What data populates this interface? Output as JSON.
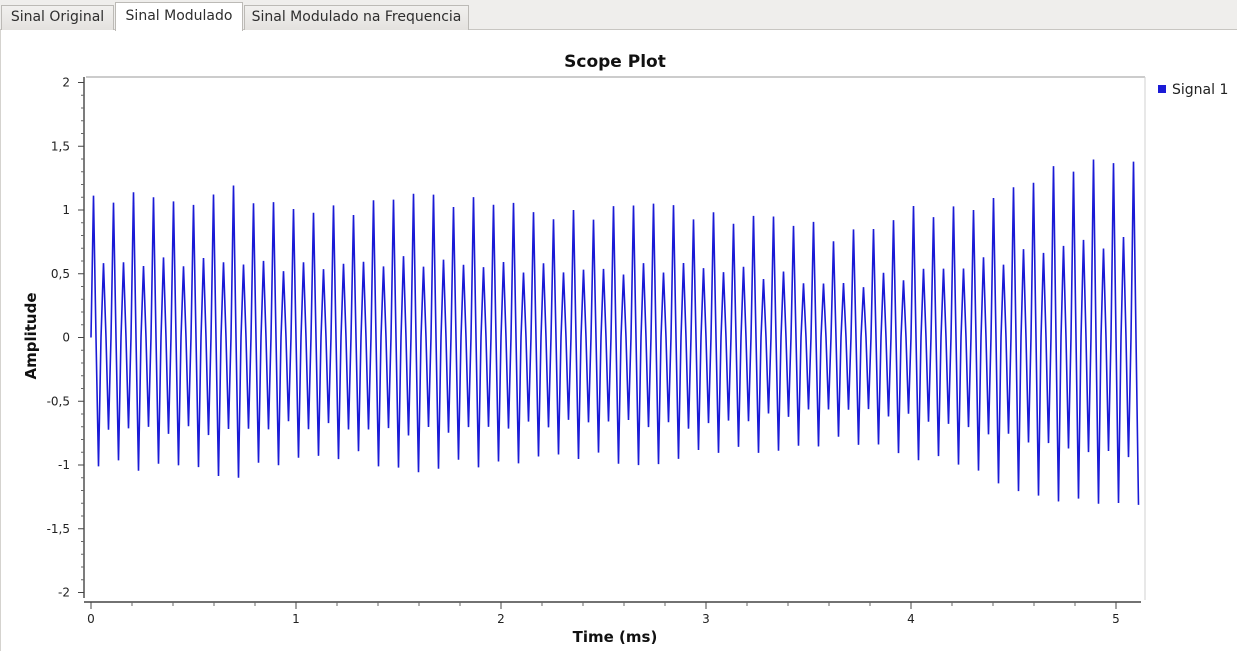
{
  "tabs": [
    {
      "label": "Sinal Original",
      "active": false
    },
    {
      "label": "Sinal Modulado",
      "active": true
    },
    {
      "label": "Sinal Modulado na Frequencia",
      "active": false
    }
  ],
  "chart_data": {
    "type": "line",
    "title": "Scope Plot",
    "xlabel": "Time (ms)",
    "ylabel": "Amplitude",
    "xlim": [
      0,
      5.12
    ],
    "ylim": [
      -2,
      2
    ],
    "x_ticks": [
      0,
      1,
      2,
      3,
      4,
      5
    ],
    "x_tick_labels": [
      "0",
      "1",
      "2",
      "3",
      "4",
      "5"
    ],
    "y_ticks": [
      2,
      1.5,
      1,
      0.5,
      0,
      -0.5,
      -1,
      -1.5,
      -2
    ],
    "y_tick_labels": [
      "2",
      "1,5",
      "1",
      "0,5",
      "0",
      "-0,5",
      "-1",
      "-1,5",
      "-2"
    ],
    "grid": false,
    "legend_position": "top-right",
    "color": "#1a1ad6",
    "series": [
      {
        "name": "Signal 1",
        "carrier_cycles_per_ms": 20.5,
        "envelope_peaks": {
          "t": [
            0,
            0.3,
            0.5,
            0.63,
            0.8,
            1.0,
            1.3,
            1.55,
            1.8,
            2.0,
            2.2,
            2.5,
            2.7,
            2.9,
            3.1,
            3.3,
            3.5,
            3.65,
            3.85,
            4.0,
            4.2,
            4.4,
            4.6,
            4.8,
            5.0,
            5.12
          ],
          "upper": [
            1.08,
            1.12,
            1.02,
            1.2,
            1.08,
            1.0,
            1.0,
            1.14,
            1.05,
            1.08,
            0.95,
            0.97,
            1.08,
            0.98,
            0.92,
            0.95,
            0.88,
            0.78,
            0.88,
            1.0,
            0.98,
            1.08,
            1.25,
            1.35,
            1.38,
            1.4
          ],
          "lower": [
            -0.98,
            -1.02,
            -0.98,
            -1.12,
            -1.02,
            -0.95,
            -0.92,
            -1.07,
            -0.98,
            -1.0,
            -0.93,
            -0.93,
            -1.03,
            -0.92,
            -0.87,
            -0.9,
            -0.85,
            -0.8,
            -0.85,
            -0.95,
            -0.95,
            -1.12,
            -1.25,
            -1.28,
            -1.3,
            -1.32
          ]
        },
        "inner_peaks": {
          "t": [
            0,
            0.3,
            0.63,
            1.0,
            1.55,
            2.0,
            2.5,
            2.9,
            3.3,
            3.65,
            4.0,
            4.4,
            4.8,
            5.12
          ],
          "upper": [
            0.57,
            0.59,
            0.6,
            0.55,
            0.6,
            0.56,
            0.52,
            0.56,
            0.5,
            0.4,
            0.5,
            0.6,
            0.74,
            0.74
          ],
          "lower": [
            -0.7,
            -0.72,
            -0.74,
            -0.68,
            -0.74,
            -0.7,
            -0.65,
            -0.7,
            -0.62,
            -0.55,
            -0.62,
            -0.75,
            -0.88,
            -0.93
          ]
        }
      }
    ]
  }
}
